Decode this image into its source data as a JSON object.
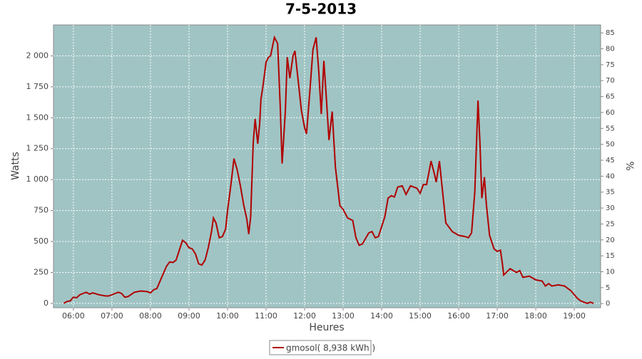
{
  "chart_data": {
    "type": "line",
    "title": "7-5-2013",
    "x_label": "Heures",
    "y_label": "Watts",
    "y2_label": "%",
    "x": [
      345,
      350,
      355,
      360,
      365,
      370,
      375,
      380,
      385,
      390,
      400,
      410,
      415,
      425,
      430,
      435,
      440,
      445,
      455,
      465,
      475,
      480,
      485,
      490,
      495,
      500,
      505,
      510,
      515,
      520,
      525,
      530,
      535,
      540,
      545,
      550,
      555,
      560,
      565,
      570,
      575,
      578,
      582,
      587,
      592,
      597,
      600,
      605,
      610,
      615,
      620,
      625,
      630,
      633,
      636,
      640,
      643,
      647,
      650,
      652,
      655,
      660,
      664,
      667,
      673,
      678,
      682,
      685,
      690,
      693,
      697,
      702,
      705,
      710,
      715,
      720,
      723,
      728,
      733,
      738,
      742,
      746,
      750,
      754,
      758,
      763,
      768,
      775,
      780,
      787,
      795,
      800,
      805,
      810,
      820,
      825,
      830,
      835,
      845,
      850,
      855,
      860,
      865,
      872,
      878,
      885,
      895,
      900,
      905,
      910,
      917,
      922,
      925,
      930,
      935,
      940,
      950,
      960,
      970,
      975,
      980,
      985,
      990,
      993,
      996,
      1000,
      1003,
      1008,
      1015,
      1020,
      1025,
      1028,
      1030,
      1040,
      1050,
      1055,
      1060,
      1070,
      1080,
      1090,
      1095,
      1100,
      1105,
      1115,
      1125,
      1135,
      1145,
      1150,
      1155,
      1160,
      1165,
      1170
    ],
    "series": [
      {
        "name": "gmosol( 8,938 kWh )",
        "color": "#b00000",
        "values": [
          0,
          15,
          20,
          50,
          45,
          70,
          80,
          90,
          75,
          85,
          70,
          60,
          60,
          80,
          90,
          80,
          50,
          55,
          90,
          100,
          95,
          85,
          110,
          120,
          180,
          240,
          300,
          335,
          330,
          350,
          430,
          510,
          490,
          450,
          440,
          400,
          320,
          310,
          350,
          450,
          580,
          690,
          650,
          530,
          540,
          600,
          750,
          950,
          1170,
          1080,
          950,
          800,
          680,
          560,
          700,
          1300,
          1490,
          1290,
          1450,
          1650,
          1750,
          1950,
          1990,
          2000,
          2150,
          2100,
          1600,
          1130,
          1550,
          1990,
          1820,
          2000,
          2040,
          1800,
          1560,
          1420,
          1370,
          1700,
          2050,
          2150,
          1880,
          1530,
          1960,
          1650,
          1320,
          1550,
          1100,
          790,
          760,
          690,
          670,
          530,
          470,
          480,
          570,
          580,
          530,
          540,
          700,
          850,
          870,
          860,
          940,
          950,
          880,
          950,
          930,
          890,
          960,
          960,
          1150,
          1050,
          980,
          1150,
          900,
          650,
          580,
          550,
          540,
          530,
          570,
          900,
          1640,
          1300,
          850,
          1020,
          800,
          550,
          440,
          420,
          430,
          320,
          230,
          280,
          250,
          265,
          210,
          220,
          190,
          180,
          140,
          160,
          140,
          150,
          140,
          100,
          40,
          20,
          10,
          0,
          10,
          0
        ]
      }
    ],
    "xlim": [
      329,
      1181
    ],
    "xticks": [
      {
        "value": 360,
        "label": "06:00"
      },
      {
        "value": 420,
        "label": "07:00"
      },
      {
        "value": 480,
        "label": "08:00"
      },
      {
        "value": 540,
        "label": "09:00"
      },
      {
        "value": 600,
        "label": "10:00"
      },
      {
        "value": 660,
        "label": "11:00"
      },
      {
        "value": 720,
        "label": "12:00"
      },
      {
        "value": 780,
        "label": "13:00"
      },
      {
        "value": 840,
        "label": "14:00"
      },
      {
        "value": 900,
        "label": "15:00"
      },
      {
        "value": 960,
        "label": "16:00"
      },
      {
        "value": 1020,
        "label": "17:00"
      },
      {
        "value": 1080,
        "label": "18:00"
      },
      {
        "value": 1140,
        "label": "19:00"
      }
    ],
    "ylim": [
      -35,
      2250
    ],
    "yticks": [
      0,
      250,
      500,
      750,
      {
        "value": 1000,
        "label": "1 000"
      },
      {
        "value": 1250,
        "label": "1 250"
      },
      {
        "value": 1500,
        "label": "1 500"
      },
      {
        "value": 1750,
        "label": "1 750"
      },
      {
        "value": 2000,
        "label": "2 000"
      }
    ],
    "y2lim": [
      -1.3,
      87.5
    ],
    "y2ticks": [
      0,
      5,
      10,
      15,
      20,
      25,
      30,
      35,
      40,
      45,
      50,
      55,
      60,
      65,
      70,
      75,
      80,
      85
    ],
    "grid": true,
    "legend": "bottom"
  }
}
